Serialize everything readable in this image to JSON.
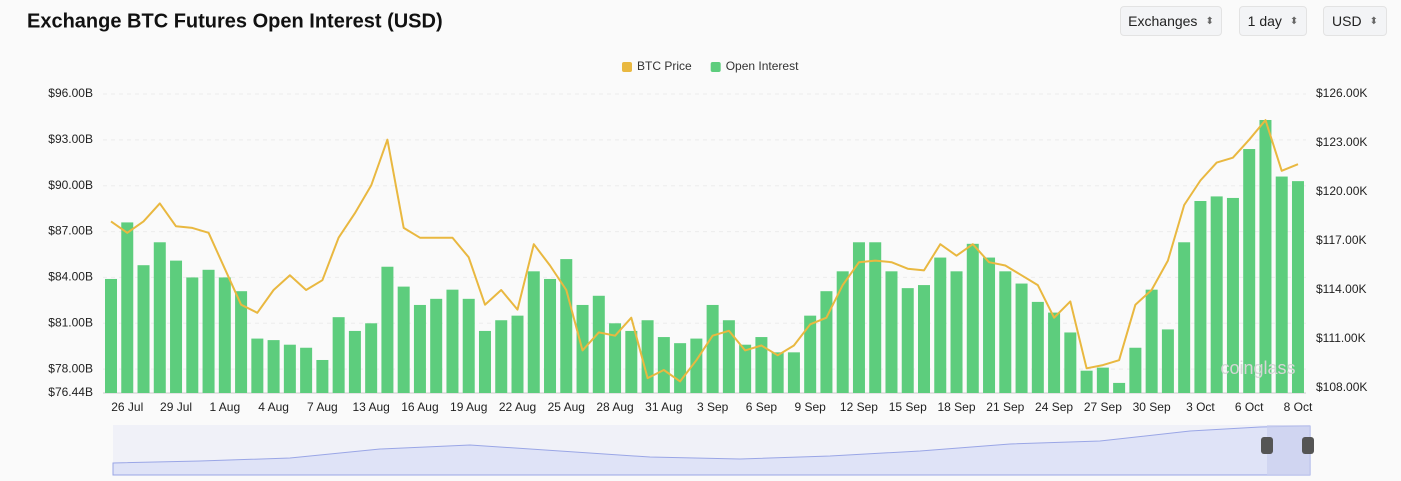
{
  "controls": [
    "Exchanges",
    "1 day",
    "USD"
  ],
  "chart_data": {
    "type": "bar",
    "title": "Exchange BTC Futures Open Interest (USD)",
    "watermark": "coinglass",
    "categories": [
      null,
      "26 Jul",
      null,
      null,
      "29 Jul",
      null,
      null,
      "1 Aug",
      null,
      null,
      "4 Aug",
      null,
      null,
      "7 Aug",
      null,
      null,
      "13 Aug",
      null,
      null,
      "16 Aug",
      null,
      null,
      "19 Aug",
      null,
      null,
      "22 Aug",
      null,
      null,
      "25 Aug",
      null,
      null,
      "28 Aug",
      null,
      null,
      "31 Aug",
      null,
      null,
      "3 Sep",
      null,
      null,
      "6 Sep",
      null,
      null,
      "9 Sep",
      null,
      null,
      "12 Sep",
      null,
      null,
      "15 Sep",
      null,
      null,
      "18 Sep",
      null,
      null,
      "21 Sep",
      null,
      null,
      "24 Sep",
      null,
      null,
      "27 Sep",
      null,
      null,
      "30 Sep",
      null,
      null,
      "3 Oct",
      null,
      null,
      "6 Oct",
      null,
      null,
      "8 Oct"
    ],
    "series": [
      {
        "name": "Open Interest",
        "type": "bar",
        "color": "#5dcd7d",
        "values": [
          83.9,
          87.6,
          84.8,
          86.3,
          85.1,
          84.0,
          84.5,
          84.0,
          83.1,
          80.0,
          79.9,
          79.6,
          79.4,
          78.6,
          81.4,
          80.5,
          81.0,
          84.7,
          83.4,
          82.2,
          82.6,
          83.2,
          82.6,
          80.5,
          81.2,
          81.5,
          84.4,
          83.9,
          85.2,
          82.2,
          82.8,
          81.0,
          80.5,
          81.2,
          80.1,
          79.7,
          80.0,
          82.2,
          81.2,
          79.6,
          80.1,
          79.1,
          79.1,
          81.5,
          83.1,
          84.4,
          86.3,
          86.3,
          84.4,
          83.3,
          83.5,
          85.3,
          84.4,
          86.2,
          85.3,
          84.4,
          83.6,
          82.4,
          81.7,
          80.4,
          77.9,
          78.1,
          77.1,
          79.4,
          83.2,
          80.6,
          86.3,
          89.0,
          89.3,
          89.2,
          92.4,
          94.3,
          90.6,
          90.3
        ]
      },
      {
        "name": "BTC Price",
        "type": "line",
        "axis": "y2",
        "color": "#e9b840",
        "values": [
          118.2,
          117.5,
          118.2,
          119.3,
          117.9,
          117.8,
          117.5,
          115.3,
          113.1,
          112.6,
          114.0,
          114.9,
          114.0,
          114.6,
          117.2,
          118.7,
          120.4,
          123.2,
          117.8,
          117.2,
          117.2,
          117.2,
          116.0,
          113.1,
          114.0,
          112.8,
          116.8,
          115.5,
          114.0,
          110.3,
          111.4,
          111.2,
          112.3,
          108.6,
          109.1,
          108.4,
          109.7,
          111.2,
          111.5,
          110.3,
          110.6,
          110.0,
          110.6,
          111.9,
          112.3,
          114.3,
          115.7,
          115.8,
          115.7,
          115.3,
          115.2,
          116.8,
          116.1,
          116.8,
          115.7,
          115.5,
          114.9,
          114.3,
          112.3,
          113.3,
          109.2,
          109.4,
          109.7,
          113.1,
          114.0,
          115.8,
          119.2,
          120.7,
          121.8,
          122.1,
          123.2,
          124.4,
          121.3,
          121.7
        ]
      }
    ],
    "legend_order": [
      1,
      0
    ],
    "ylim": [
      76.44,
      96
    ],
    "yticks": [
      {
        "value": 76.44,
        "label": "$76.44B"
      },
      {
        "value": 78,
        "label": "$78.00B"
      },
      {
        "value": 81,
        "label": "$81.00B"
      },
      {
        "value": 84,
        "label": "$84.00B"
      },
      {
        "value": 87,
        "label": "$87.00B"
      },
      {
        "value": 90,
        "label": "$90.00B"
      },
      {
        "value": 93,
        "label": "$93.00B"
      },
      {
        "value": 96,
        "label": "$96.00B"
      }
    ],
    "y2lim": [
      107.69,
      126
    ],
    "y2ticks": [
      {
        "value": 108,
        "label": "$108.00K"
      },
      {
        "value": 111,
        "label": "$111.00K"
      },
      {
        "value": 114,
        "label": "$114.00K"
      },
      {
        "value": 117,
        "label": "$117.00K"
      },
      {
        "value": 120,
        "label": "$120.00K"
      },
      {
        "value": 123,
        "label": "$123.00K"
      },
      {
        "value": 126,
        "label": "$126.00K"
      }
    ],
    "grid": true
  }
}
